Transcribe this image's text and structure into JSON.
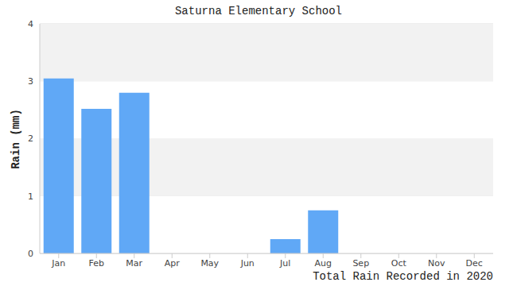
{
  "chart_data": {
    "type": "bar",
    "title": "Saturna Elementary School",
    "xlabel": "Total Rain Recorded in 2020",
    "ylabel": "Rain (mm)",
    "categories": [
      "Jan",
      "Feb",
      "Mar",
      "Apr",
      "May",
      "Jun",
      "Jul",
      "Aug",
      "Sep",
      "Oct",
      "Nov",
      "Dec"
    ],
    "values": [
      3.05,
      2.52,
      2.8,
      0,
      0,
      0,
      0.25,
      0.75,
      0,
      0,
      0,
      0
    ],
    "color": "#60a8f6",
    "ylim": [
      0,
      4
    ],
    "yticks": [
      0,
      1,
      2,
      3,
      4
    ],
    "grid": true
  }
}
